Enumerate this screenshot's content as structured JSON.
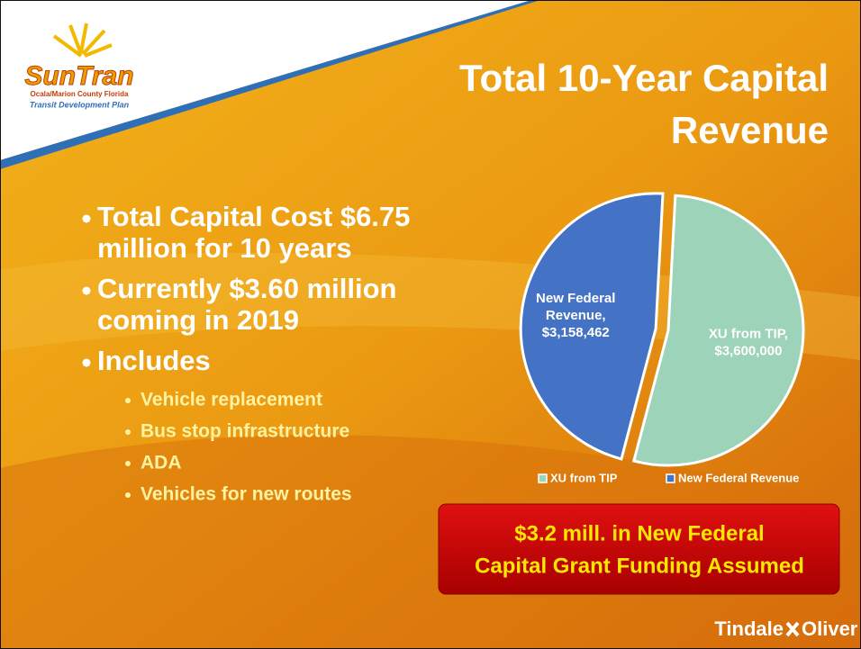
{
  "slide": {
    "logo": {
      "name": "SunTran",
      "region": "Ocala/Marion County Florida",
      "tagline": "Transit Development Plan"
    },
    "title_lines": [
      "Total 10-Year Capital",
      "Revenue"
    ],
    "bullets": [
      {
        "lines": [
          "Total Capital Cost $6.75",
          "million for 10 years"
        ]
      },
      {
        "lines": [
          "Currently $3.60 million",
          "coming in 2019"
        ]
      },
      {
        "lines": [
          "Includes"
        ],
        "sub": [
          "Vehicle replacement",
          "Bus stop infrastructure",
          "ADA",
          "Vehicles for new routes"
        ]
      }
    ],
    "callout_lines": [
      "$3.2 mill. in New Federal",
      "Capital Grant Funding Assumed"
    ],
    "footer": [
      "Tindale",
      "Oliver"
    ]
  },
  "chart_data": {
    "type": "pie",
    "categories": [
      "XU from TIP",
      "New Federal Revenue"
    ],
    "values": [
      3600000,
      3158462
    ],
    "value_labels": [
      "XU from TIP,\n$3,600,000",
      "New Federal\nRevenue,\n$3,158,462"
    ],
    "colors": [
      "#9dd3b8",
      "#4472c4"
    ],
    "legend": "bottom"
  }
}
